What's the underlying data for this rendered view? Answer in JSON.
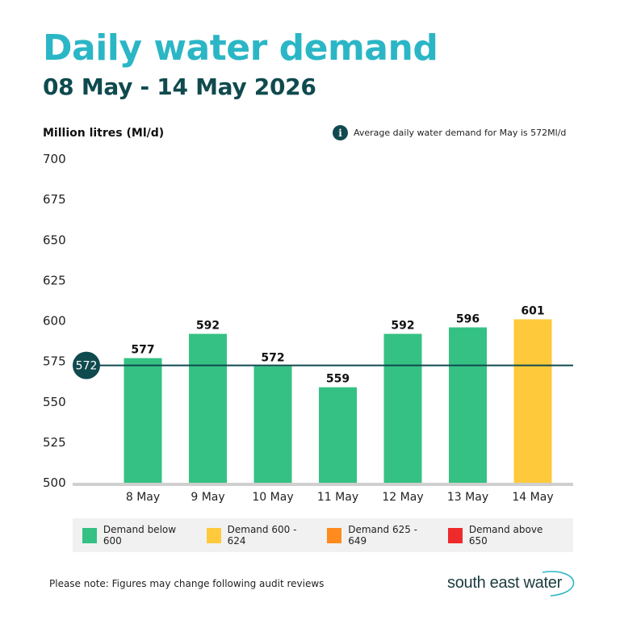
{
  "header": {
    "title": "Daily water demand",
    "subtitle": "08 May - 14 May 2026"
  },
  "note": {
    "icon": "info-icon",
    "icon_glyph": "i",
    "text": "Average daily water demand for May is 572Ml/d"
  },
  "chart_data": {
    "type": "bar",
    "ylabel": "Million litres (Ml/d)",
    "ylim": [
      500,
      700
    ],
    "yticks": [
      700,
      675,
      650,
      625,
      600,
      575,
      550,
      525,
      500
    ],
    "categories": [
      "8 May",
      "9 May",
      "10 May",
      "11 May",
      "12 May",
      "13 May",
      "14 May"
    ],
    "values": [
      577,
      592,
      572,
      559,
      592,
      596,
      601
    ],
    "data_labels": [
      "577",
      "592",
      "572",
      "559",
      "592",
      "596",
      "601"
    ],
    "bar_colors": [
      "#35c183",
      "#35c183",
      "#35c183",
      "#35c183",
      "#35c183",
      "#35c183",
      "#ffc93c"
    ],
    "reference_line": {
      "value": 572,
      "label": "572",
      "color": "#0f4a4e"
    },
    "grid": false,
    "legend": [
      {
        "label": "Demand below 600",
        "color": "#35c183"
      },
      {
        "label": "Demand 600 - 624",
        "color": "#ffc93c"
      },
      {
        "label": "Demand 625 - 649",
        "color": "#ff8a1e"
      },
      {
        "label": "Demand above 650",
        "color": "#ee2a2a"
      }
    ],
    "legend_position": "bottom"
  },
  "footer": {
    "note": "Please note: Figures may change following audit reviews",
    "logo_text": "south east water"
  }
}
